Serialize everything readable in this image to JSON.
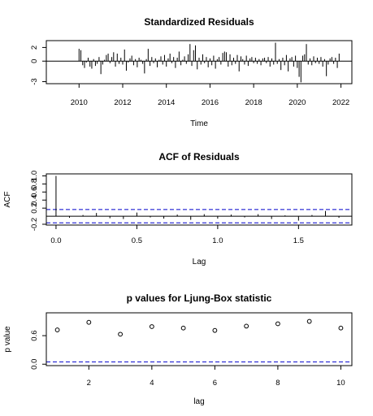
{
  "chart_data": [
    {
      "type": "bar",
      "title": "Standardized Residuals",
      "xlabel": "Time",
      "ylabel": "",
      "xlim": [
        2008.5,
        2022.5
      ],
      "ylim": [
        -3.3,
        3.0
      ],
      "xticks": [
        2010,
        2012,
        2014,
        2016,
        2018,
        2020,
        2022
      ],
      "xtick_labels": [
        "2010",
        "2012",
        "2014",
        "2016",
        "2018",
        "2020",
        "2022"
      ],
      "yticks": [
        -3,
        0,
        2
      ],
      "ytick_labels": [
        "-3",
        "0",
        "2"
      ],
      "reference_line": 0,
      "start": 2010.0,
      "step": 0.08333,
      "values": [
        1.8,
        1.6,
        -0.6,
        -1.0,
        -0.2,
        0.5,
        -0.8,
        -1.1,
        0.3,
        -0.7,
        -0.4,
        0.6,
        -1.9,
        -0.5,
        0.2,
        0.9,
        1.1,
        -0.3,
        0.6,
        1.3,
        -0.8,
        1.1,
        -0.4,
        0.5,
        -0.5,
        1.7,
        -1.4,
        -0.2,
        0.4,
        0.8,
        -0.6,
        0.3,
        -0.9,
        0.5,
        0.2,
        -0.4,
        -1.8,
        0.3,
        1.8,
        -0.7,
        0.6,
        -0.3,
        0.4,
        -0.9,
        0.2,
        0.7,
        -0.5,
        0.9,
        -0.8,
        0.4,
        1.1,
        -0.3,
        0.6,
        -1.0,
        0.5,
        1.4,
        -0.6,
        0.2,
        0.7,
        -0.4,
        1.0,
        2.5,
        -0.7,
        1.6,
        2.3,
        -1.2,
        0.5,
        -0.5,
        1.0,
        -0.3,
        0.6,
        -0.9,
        0.4,
        -0.6,
        0.8,
        -1.1,
        0.3,
        0.6,
        -0.5,
        1.2,
        1.4,
        1.3,
        -0.8,
        1.0,
        -0.6,
        0.5,
        -0.4,
        0.9,
        -1.5,
        0.7,
        0.3,
        -0.5,
        0.8,
        -0.7,
        0.4,
        0.6,
        -0.3,
        0.5,
        -0.4,
        0.3,
        -0.6,
        0.4,
        0.5,
        -0.3,
        0.6,
        -0.8,
        0.4,
        -0.5,
        2.7,
        -0.4,
        0.3,
        -1.3,
        0.5,
        -0.6,
        0.9,
        -1.5,
        0.4,
        0.6,
        -0.8,
        0.8,
        -1.0,
        -2.3,
        -3.1,
        0.8,
        1.0,
        2.5,
        -0.5,
        0.4,
        -0.6,
        0.7,
        -0.3,
        0.5,
        -0.4,
        0.6,
        -0.8,
        0.3,
        -2.2,
        -0.5,
        0.4,
        0.6,
        -0.4,
        0.5,
        -1.0,
        1.1
      ]
    },
    {
      "type": "bar",
      "title": "ACF of Residuals",
      "xlabel": "Lag",
      "ylabel": "ACF",
      "xlim": [
        -0.06,
        1.83
      ],
      "ylim": [
        -0.22,
        1.05
      ],
      "xticks": [
        0.0,
        0.5,
        1.0,
        1.5
      ],
      "xtick_labels": [
        "0.0",
        "0.5",
        "1.0",
        "1.5"
      ],
      "yticks": [
        -0.2,
        0.2,
        0.4,
        0.6,
        0.8,
        1.0
      ],
      "ytick_labels": [
        "-0.2",
        "0.2",
        "0.4",
        "0.6",
        "0.8",
        "1.0"
      ],
      "reference_line": 0,
      "confidence_bounds": [
        -0.165,
        0.165
      ],
      "lags": [
        0.0,
        0.0833,
        0.1667,
        0.25,
        0.3333,
        0.4167,
        0.5,
        0.5833,
        0.6667,
        0.75,
        0.8333,
        0.9167,
        1.0,
        1.0833,
        1.1667,
        1.25,
        1.3333,
        1.4167,
        1.5,
        1.5833,
        1.6667,
        1.75
      ],
      "values": [
        1.0,
        -0.04,
        0.03,
        0.08,
        -0.05,
        -0.07,
        0.09,
        -0.03,
        -0.06,
        0.04,
        -0.09,
        0.05,
        -0.06,
        0.04,
        -0.03,
        0.05,
        -0.07,
        0.02,
        -0.11,
        0.03,
        0.13,
        -0.04
      ]
    },
    {
      "type": "scatter",
      "title": "p values for Ljung-Box statistic",
      "xlabel": "lag",
      "ylabel": "p value",
      "xlim": [
        0.65,
        10.35
      ],
      "ylim": [
        -0.03,
        1.08
      ],
      "xticks": [
        2,
        4,
        6,
        8,
        10
      ],
      "xtick_labels": [
        "2",
        "4",
        "6",
        "8",
        "10"
      ],
      "yticks": [
        0.0,
        0.6
      ],
      "ytick_labels": [
        "0.0",
        "0.6"
      ],
      "reference_line": 0.05,
      "x": [
        1,
        2,
        3,
        4,
        5,
        6,
        7,
        8,
        9,
        10
      ],
      "y": [
        0.72,
        0.88,
        0.63,
        0.79,
        0.76,
        0.71,
        0.8,
        0.85,
        0.9,
        0.76
      ]
    }
  ]
}
